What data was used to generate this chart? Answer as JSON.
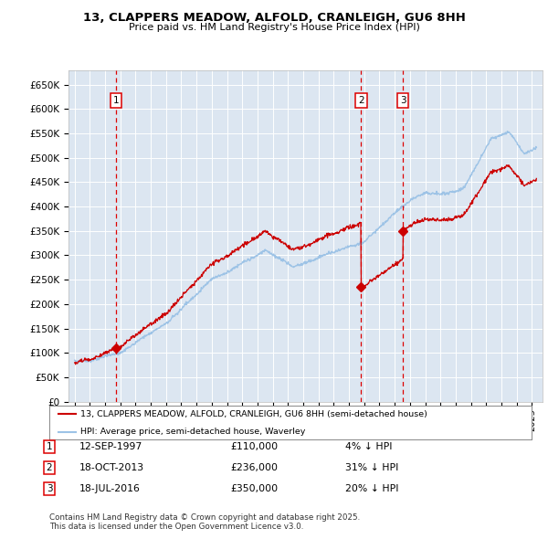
{
  "title": "13, CLAPPERS MEADOW, ALFOLD, CRANLEIGH, GU6 8HH",
  "subtitle": "Price paid vs. HM Land Registry's House Price Index (HPI)",
  "legend_label_red": "13, CLAPPERS MEADOW, ALFOLD, CRANLEIGH, GU6 8HH (semi-detached house)",
  "legend_label_blue": "HPI: Average price, semi-detached house, Waverley",
  "footer": "Contains HM Land Registry data © Crown copyright and database right 2025.\nThis data is licensed under the Open Government Licence v3.0.",
  "transactions": [
    {
      "num": 1,
      "date": "12-SEP-1997",
      "price": 110000,
      "hpi_note": "4% ↓ HPI",
      "year": 1997.71
    },
    {
      "num": 2,
      "date": "18-OCT-2013",
      "price": 236000,
      "hpi_note": "31% ↓ HPI",
      "year": 2013.8
    },
    {
      "num": 3,
      "date": "18-JUL-2016",
      "price": 350000,
      "hpi_note": "20% ↓ HPI",
      "year": 2016.54
    }
  ],
  "ylim": [
    0,
    680000
  ],
  "yticks": [
    0,
    50000,
    100000,
    150000,
    200000,
    250000,
    300000,
    350000,
    400000,
    450000,
    500000,
    550000,
    600000,
    650000
  ],
  "background_color": "#dce6f1",
  "red_color": "#cc0000",
  "blue_color": "#9dc3e6",
  "vline_color": "#dd0000",
  "box_color": "#dd0000",
  "grid_color": "#ffffff"
}
